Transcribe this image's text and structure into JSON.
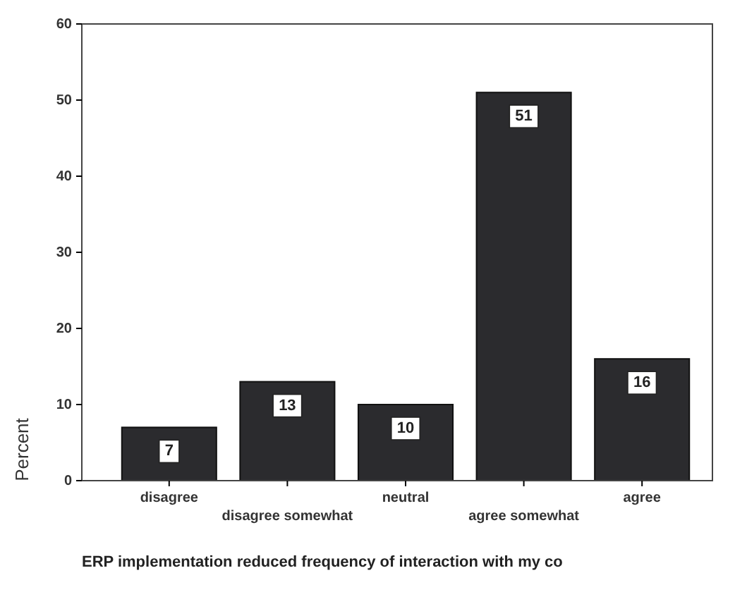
{
  "chart_data": {
    "type": "bar",
    "xlabel": "ERP implementation reduced frequency of interaction with my co",
    "ylabel": "Percent",
    "categories": [
      "disagree",
      "disagree somewhat",
      "neutral",
      "agree somewhat",
      "agree"
    ],
    "values": [
      7,
      13,
      10,
      51,
      16
    ],
    "color": "#2b2b2e",
    "ylim": [
      0,
      60
    ],
    "yticks": [
      0,
      10,
      20,
      30,
      40,
      50,
      60
    ],
    "data_labels": true
  }
}
